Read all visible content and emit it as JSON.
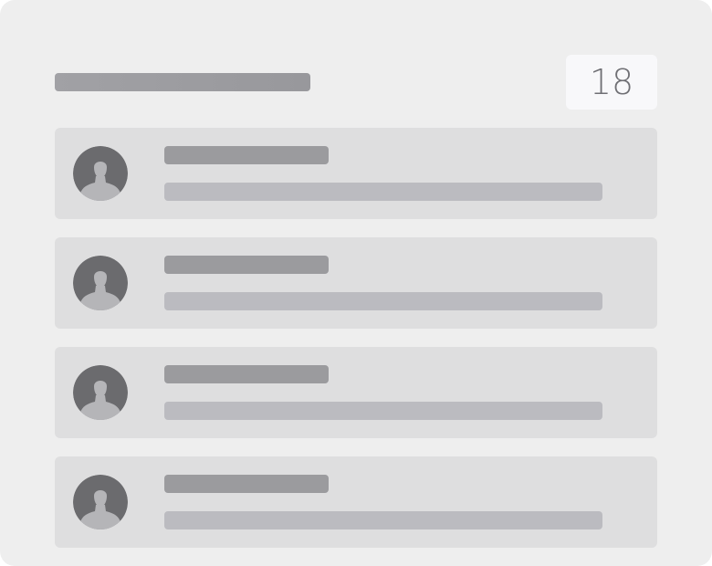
{
  "header": {
    "count": "18"
  },
  "list": {
    "items": [
      {
        "avatar_icon": "user-silhouette-icon"
      },
      {
        "avatar_icon": "user-silhouette-icon"
      },
      {
        "avatar_icon": "user-silhouette-icon"
      },
      {
        "avatar_icon": "user-silhouette-icon"
      }
    ]
  },
  "colors": {
    "panel_background": "#eeeeee",
    "item_background": "#dededf",
    "placeholder_dark": "#9b9b9e",
    "placeholder_light": "#bbbbc0",
    "avatar_background": "#6b6b6e",
    "avatar_figure": "#b5b5b8"
  }
}
